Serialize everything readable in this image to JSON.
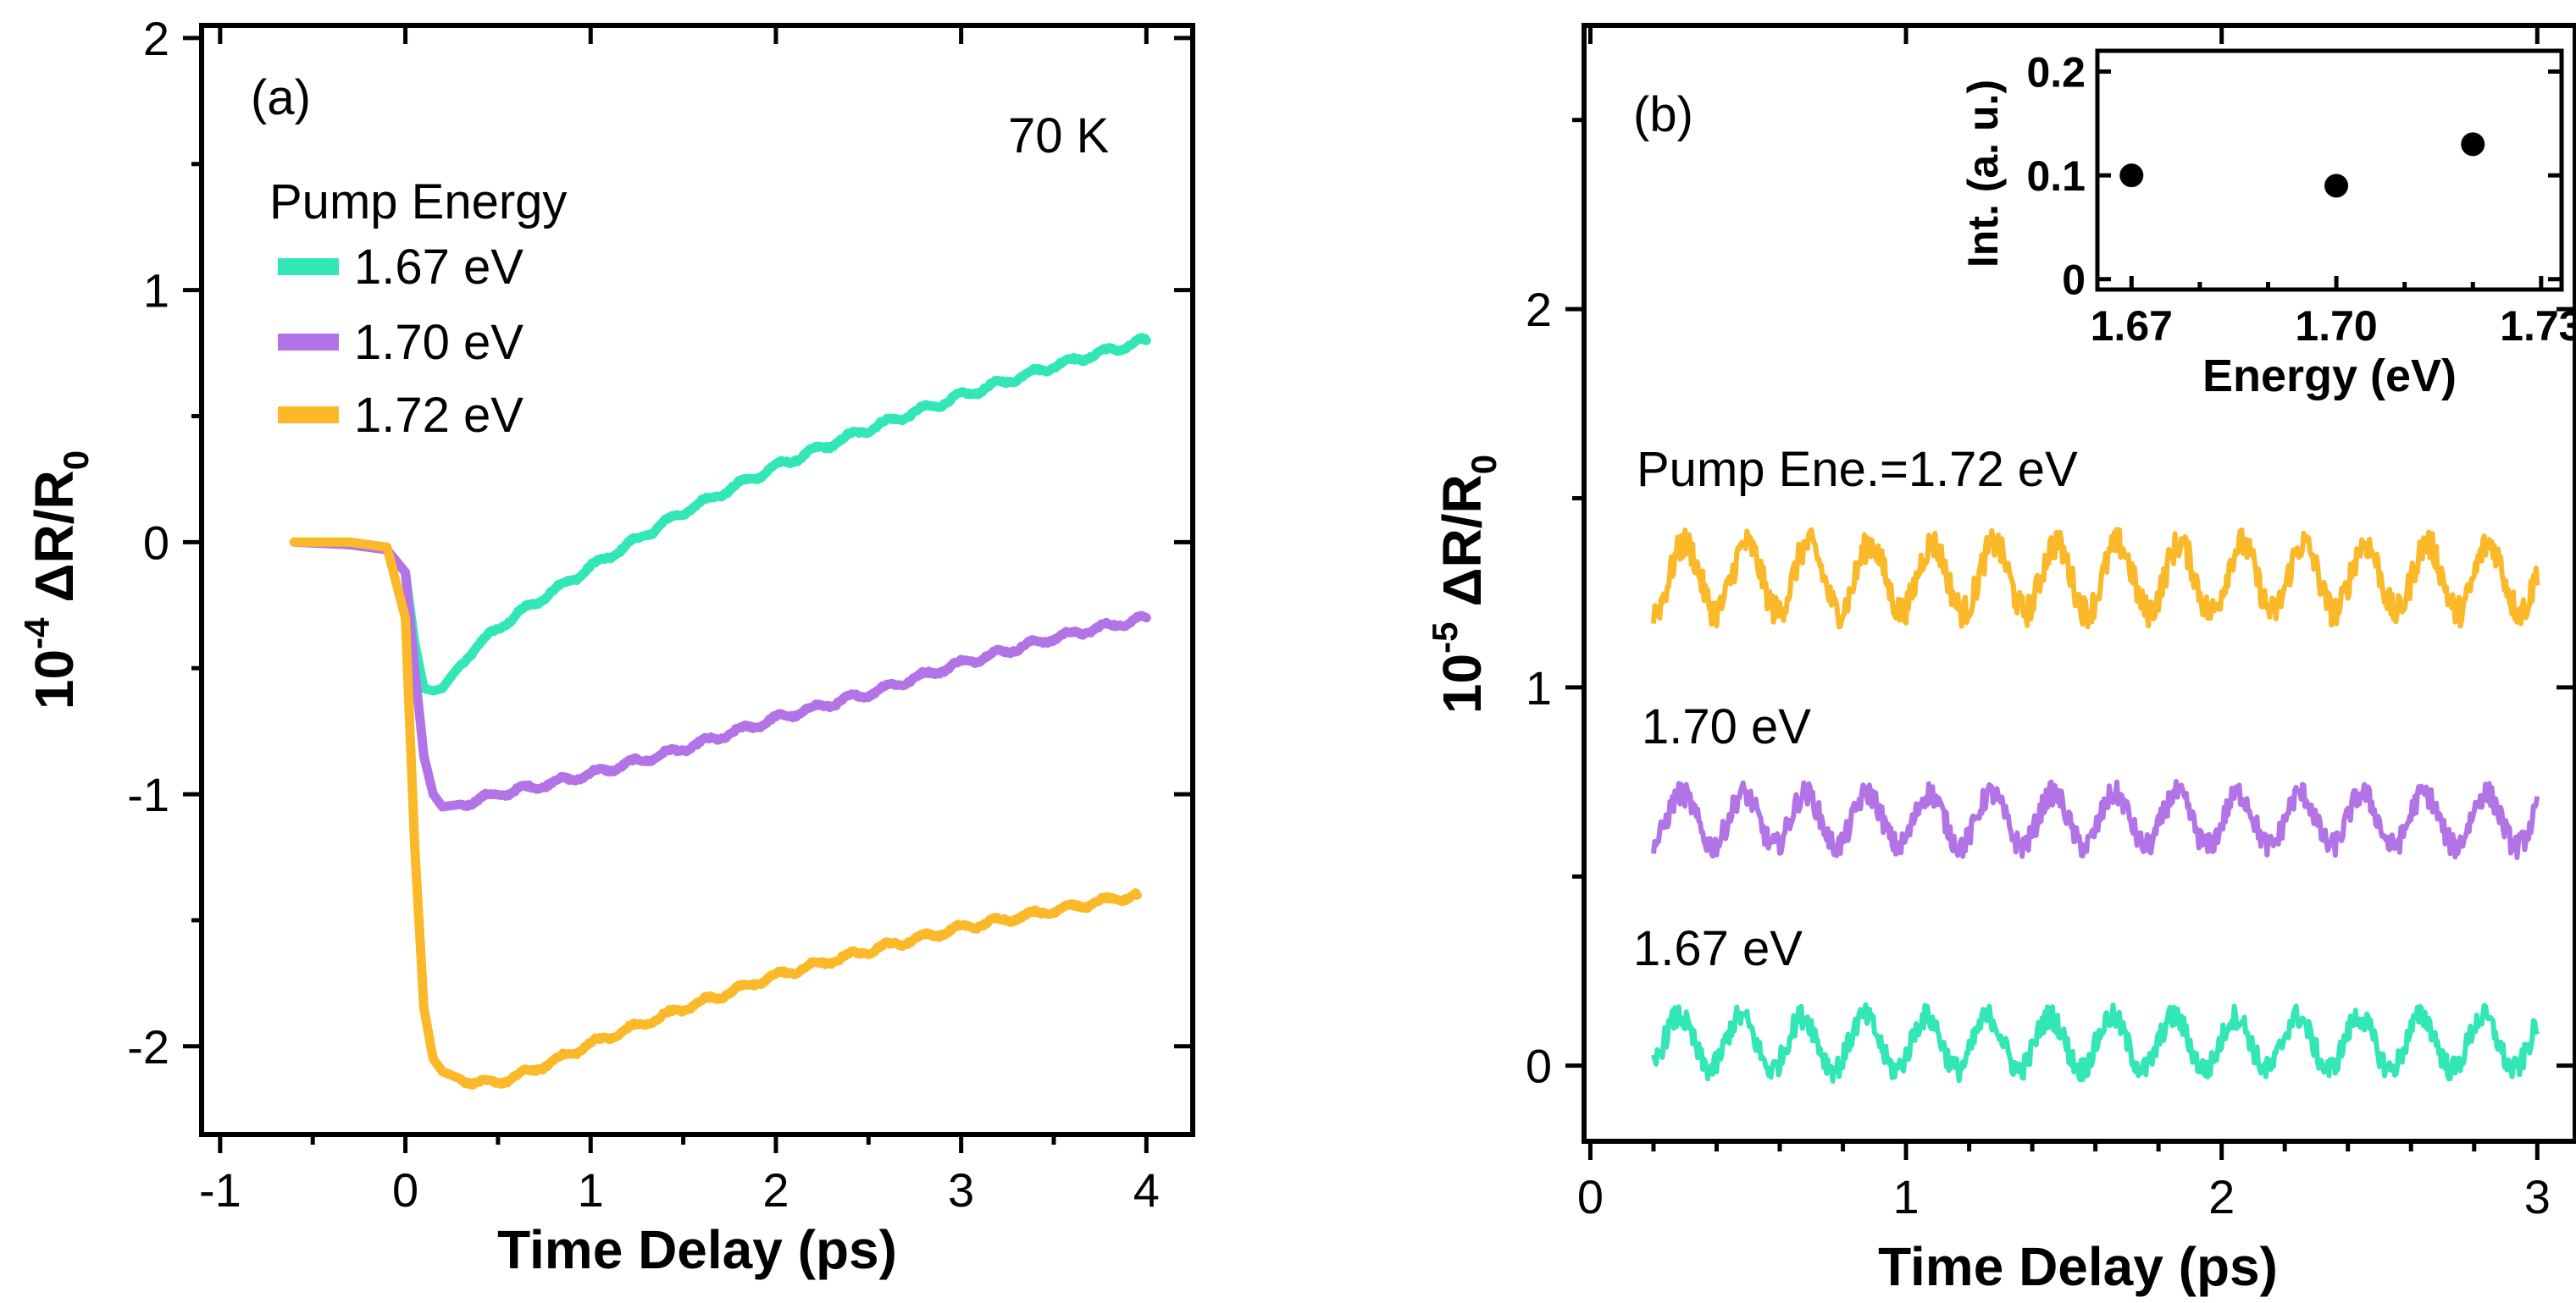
{
  "colors": {
    "c167": "#33e6b6",
    "c170": "#b273e6",
    "c172": "#fbb829",
    "axis": "#000000"
  },
  "chart_data": [
    {
      "type": "line",
      "panel": "(a)",
      "annotation": "70 K",
      "legend_title": "Pump Energy",
      "legend_placement": "top-left",
      "xlabel": "Time Delay (ps)",
      "ylabel_prefix": "10",
      "ylabel_exp": "-4",
      "ylabel_main": "ΔR/R",
      "ylabel_sub": "0",
      "xlim": [
        -1.1,
        4.25
      ],
      "ylim": [
        -2.35,
        2.05
      ],
      "xticks": [
        -1,
        0,
        1,
        2,
        3,
        4
      ],
      "xtick_labels": [
        "-1",
        "0",
        "1",
        "2",
        "3",
        "4"
      ],
      "yticks": [
        -2,
        -1,
        0,
        1,
        2
      ],
      "ytick_labels": [
        "-2",
        "-1",
        "0",
        "1",
        "2"
      ],
      "series": [
        {
          "name": "1.67 eV",
          "color_key": "c167",
          "x": [
            -0.5,
            -0.3,
            -0.1,
            0.0,
            0.05,
            0.1,
            0.15,
            0.2,
            0.25,
            0.35,
            0.5,
            0.7,
            1.0,
            1.5,
            2.0,
            2.5,
            3.0,
            3.5,
            4.0
          ],
          "y": [
            0.0,
            -0.01,
            -0.03,
            -0.12,
            -0.4,
            -0.58,
            -0.59,
            -0.58,
            -0.53,
            -0.44,
            -0.34,
            -0.24,
            -0.1,
            0.12,
            0.3,
            0.45,
            0.58,
            0.7,
            0.8
          ]
        },
        {
          "name": "1.70 eV",
          "color_key": "c170",
          "x": [
            -0.6,
            -0.3,
            -0.1,
            0.0,
            0.05,
            0.1,
            0.15,
            0.2,
            0.3,
            0.5,
            0.7,
            1.0,
            1.5,
            2.0,
            2.5,
            3.0,
            3.5,
            4.0
          ],
          "y": [
            0.0,
            -0.01,
            -0.03,
            -0.12,
            -0.5,
            -0.85,
            -1.0,
            -1.05,
            -1.04,
            -1.0,
            -0.97,
            -0.92,
            -0.82,
            -0.7,
            -0.6,
            -0.48,
            -0.38,
            -0.3
          ]
        },
        {
          "name": "1.72 eV",
          "color_key": "c172",
          "x": [
            -0.6,
            -0.3,
            -0.1,
            0.0,
            0.05,
            0.1,
            0.15,
            0.2,
            0.3,
            0.45,
            0.6,
            0.8,
            1.0,
            1.5,
            2.0,
            2.5,
            3.0,
            3.5,
            3.95
          ],
          "y": [
            0.0,
            0.0,
            -0.02,
            -0.3,
            -1.2,
            -1.85,
            -2.05,
            -2.1,
            -2.13,
            -2.15,
            -2.12,
            -2.06,
            -1.99,
            -1.85,
            -1.72,
            -1.62,
            -1.53,
            -1.46,
            -1.4
          ]
        }
      ]
    },
    {
      "type": "line",
      "panel": "(b)",
      "xlabel": "Time Delay (ps)",
      "ylabel_prefix": "10",
      "ylabel_exp": "-5",
      "ylabel_main": "ΔR/R",
      "ylabel_sub": "0",
      "xlim": [
        -0.02,
        3.12
      ],
      "ylim": [
        -0.2,
        2.75
      ],
      "xticks": [
        0,
        1,
        2,
        3
      ],
      "xtick_labels": [
        "0",
        "1",
        "2",
        "3"
      ],
      "yticks": [
        0,
        1,
        2
      ],
      "ytick_labels": [
        "0",
        "1",
        "2"
      ],
      "minor_yticks": [
        0.5,
        1.5,
        2.5
      ],
      "series": [
        {
          "name": "Pump Ene.=1.72 eV",
          "color_key": "c172",
          "offset": 1.29,
          "amplitude": 0.09,
          "period_ps": 0.196,
          "x_range": [
            0.2,
            3.0
          ]
        },
        {
          "name": "1.70 eV",
          "color_key": "c170",
          "offset": 0.65,
          "amplitude": 0.07,
          "period_ps": 0.196,
          "x_range": [
            0.2,
            3.0
          ]
        },
        {
          "name": "1.67 eV",
          "color_key": "c167",
          "offset": 0.06,
          "amplitude": 0.07,
          "period_ps": 0.196,
          "x_range": [
            0.2,
            3.0
          ]
        }
      ],
      "inset": {
        "type": "scatter",
        "xlabel": "Energy (eV)",
        "ylabel": "Int. (a. u.)",
        "xlim": [
          1.665,
          1.733
        ],
        "ylim": [
          -0.01,
          0.22
        ],
        "xticks": [
          1.67,
          1.7,
          1.73
        ],
        "xtick_labels": [
          "1.67",
          "1.70",
          "1.73"
        ],
        "yticks": [
          0,
          0.1,
          0.2
        ],
        "ytick_labels": [
          "0",
          "0.1",
          "0.2"
        ],
        "x": [
          1.67,
          1.7,
          1.72
        ],
        "y": [
          0.1,
          0.09,
          0.13
        ]
      }
    }
  ]
}
